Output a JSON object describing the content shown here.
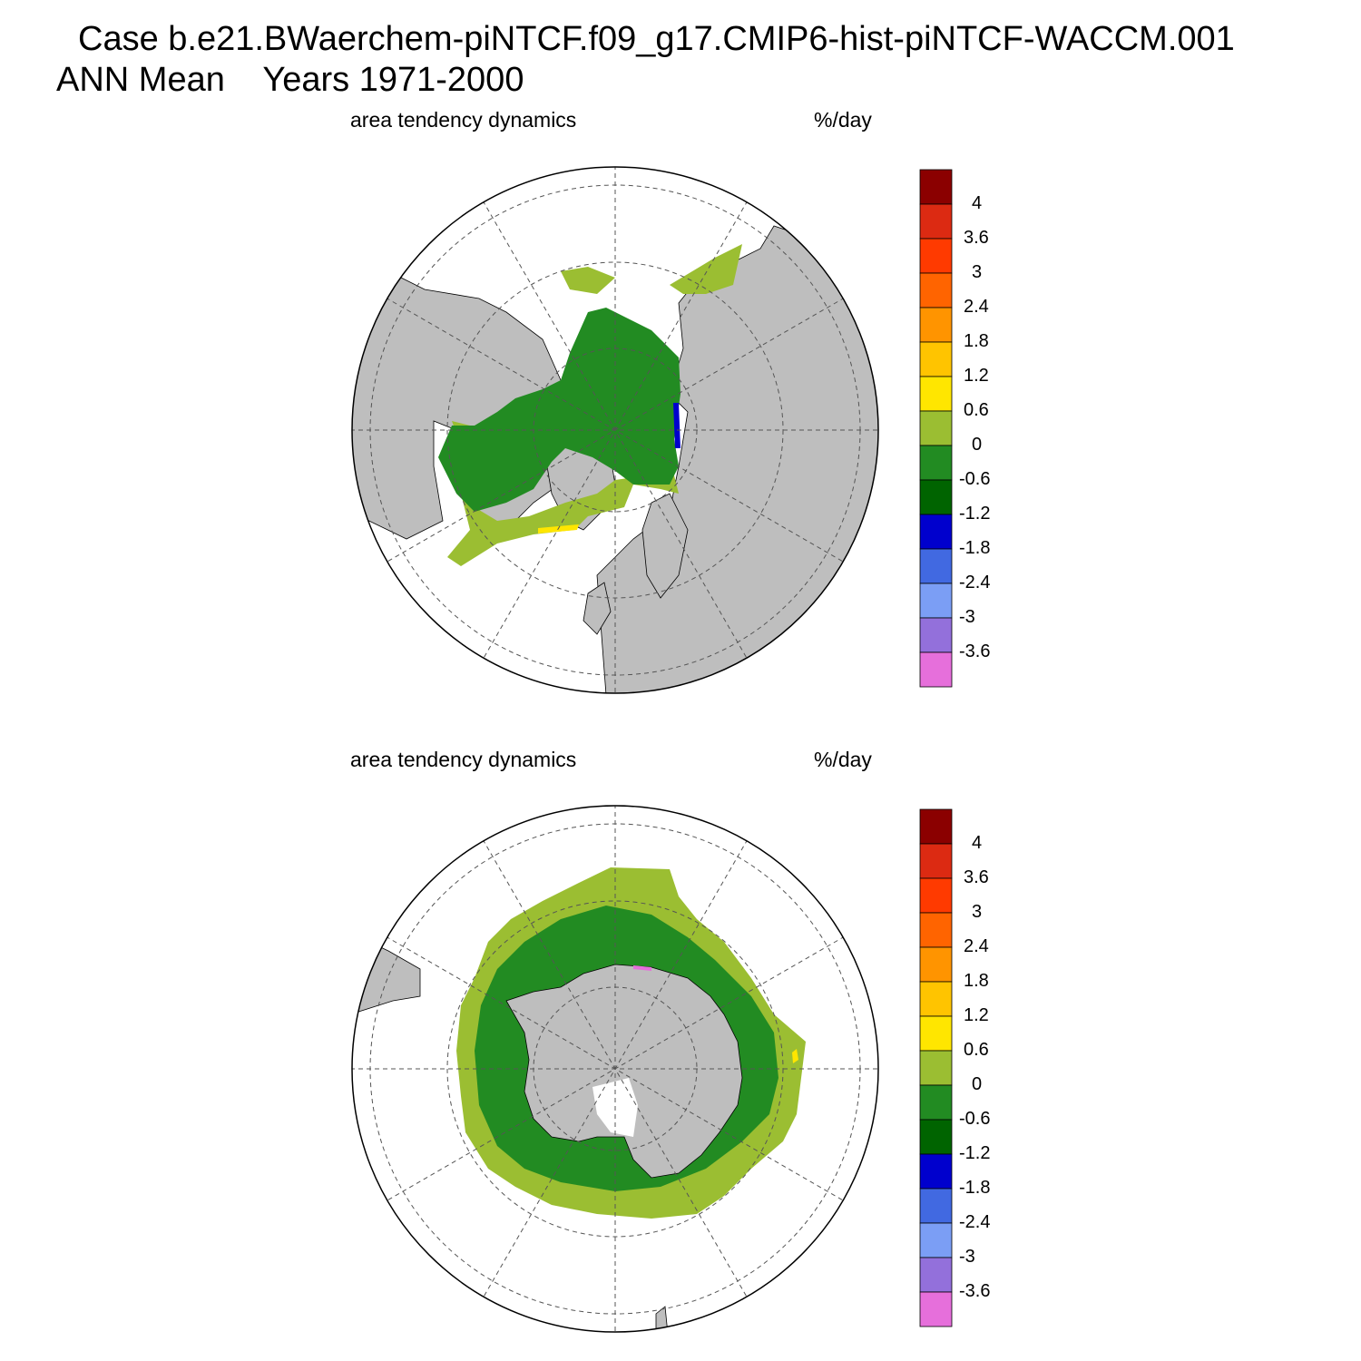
{
  "header": {
    "case_line": "Case b.e21.BWaerchem-piNTCF.f09_g17.CMIP6-hist-piNTCF-WACCM.001",
    "season": "ANN Mean",
    "years": "Years 1971-2000"
  },
  "panels": [
    {
      "id": "nh",
      "hemisphere": "north",
      "variable": "area tendency dynamics",
      "units": "%/day"
    },
    {
      "id": "sh",
      "hemisphere": "south",
      "variable": "area tendency dynamics",
      "units": "%/day"
    }
  ],
  "colorbar": {
    "labels": [
      "4",
      "3.6",
      "3",
      "2.4",
      "1.8",
      "1.2",
      "0.6",
      "0",
      "-0.6",
      "-1.2",
      "-1.8",
      "-2.4",
      "-3",
      "-3.6"
    ],
    "colors": [
      "#8b0000",
      "#dc2a12",
      "#ff3a00",
      "#ff6400",
      "#ff9400",
      "#ffc400",
      "#ffe600",
      "#9bbe32",
      "#228b22",
      "#006400",
      "#0000cd",
      "#4169e1",
      "#7b9ef5",
      "#9370db",
      "#e66fdb"
    ]
  },
  "colors": {
    "land": "#bebebe",
    "ocean": "#ffffff",
    "ice_inner": "#228b22",
    "ice_outer": "#9bbe32",
    "ice_edge_positive": "#ffe600",
    "ice_edge_negative": "#0000cd",
    "ice_edge_strong_negative": "#e66fdb"
  }
}
